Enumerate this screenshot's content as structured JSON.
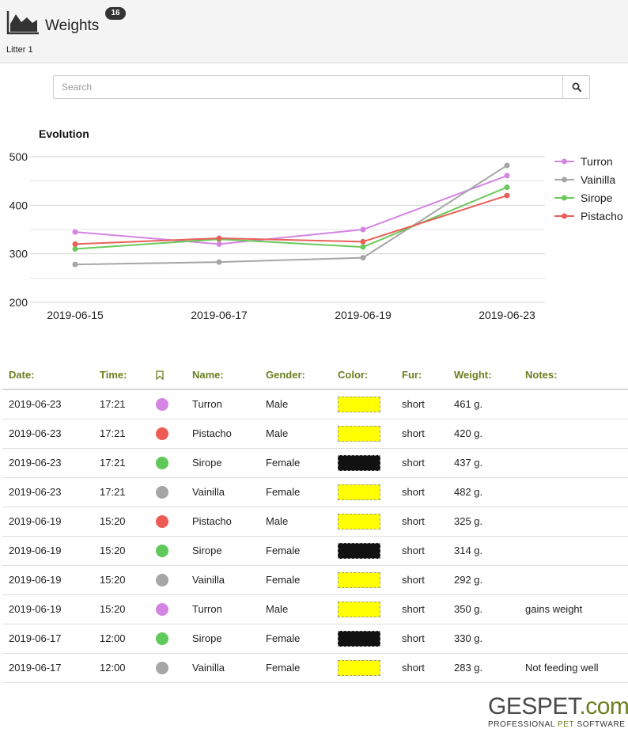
{
  "header": {
    "title": "Weights",
    "badge": "16",
    "subtitle": "Litter 1"
  },
  "search": {
    "placeholder": "Search",
    "value": ""
  },
  "chart_data": {
    "type": "line",
    "title": "Evolution",
    "xlabel": "",
    "ylabel": "",
    "x": [
      "2019-06-15",
      "2019-06-17",
      "2019-06-19",
      "2019-06-23"
    ],
    "ylim": [
      200,
      500
    ],
    "yticks": [
      200,
      300,
      400,
      500
    ],
    "grid": true,
    "legend_position": "right",
    "series": [
      {
        "name": "Turron",
        "color": "#d484e3",
        "values": [
          345,
          320,
          350,
          461
        ]
      },
      {
        "name": "Vainilla",
        "color": "#a6a6a6",
        "values": [
          278,
          283,
          292,
          482
        ]
      },
      {
        "name": "Sirope",
        "color": "#69c95a",
        "values": [
          310,
          330,
          314,
          437
        ]
      },
      {
        "name": "Pistacho",
        "color": "#e8605a",
        "values": [
          320,
          332,
          325,
          420
        ]
      }
    ]
  },
  "table": {
    "headers": {
      "date": "Date:",
      "time": "Time:",
      "name": "Name:",
      "gender": "Gender:",
      "color": "Color:",
      "fur": "Fur:",
      "weight": "Weight:",
      "notes": "Notes:"
    },
    "rows": [
      {
        "date": "2019-06-23",
        "time": "17:21",
        "dot": "#d484e3",
        "name": "Turron",
        "gender": "Male",
        "swatch": "#ffff00",
        "fur": "short",
        "weight": "461 g.",
        "notes": ""
      },
      {
        "date": "2019-06-23",
        "time": "17:21",
        "dot": "#ee5b55",
        "name": "Pistacho",
        "gender": "Male",
        "swatch": "#ffff00",
        "fur": "short",
        "weight": "420 g.",
        "notes": ""
      },
      {
        "date": "2019-06-23",
        "time": "17:21",
        "dot": "#5fc95a",
        "name": "Sirope",
        "gender": "Female",
        "swatch": "#111111",
        "fur": "short",
        "weight": "437 g.",
        "notes": ""
      },
      {
        "date": "2019-06-23",
        "time": "17:21",
        "dot": "#a6a6a6",
        "name": "Vainilla",
        "gender": "Female",
        "swatch": "#ffff00",
        "fur": "short",
        "weight": "482 g.",
        "notes": ""
      },
      {
        "date": "2019-06-19",
        "time": "15:20",
        "dot": "#ee5b55",
        "name": "Pistacho",
        "gender": "Male",
        "swatch": "#ffff00",
        "fur": "short",
        "weight": "325 g.",
        "notes": ""
      },
      {
        "date": "2019-06-19",
        "time": "15:20",
        "dot": "#5fc95a",
        "name": "Sirope",
        "gender": "Female",
        "swatch": "#111111",
        "fur": "short",
        "weight": "314 g.",
        "notes": ""
      },
      {
        "date": "2019-06-19",
        "time": "15:20",
        "dot": "#a6a6a6",
        "name": "Vainilla",
        "gender": "Female",
        "swatch": "#ffff00",
        "fur": "short",
        "weight": "292 g.",
        "notes": ""
      },
      {
        "date": "2019-06-19",
        "time": "15:20",
        "dot": "#d484e3",
        "name": "Turron",
        "gender": "Male",
        "swatch": "#ffff00",
        "fur": "short",
        "weight": "350 g.",
        "notes": "gains weight"
      },
      {
        "date": "2019-06-17",
        "time": "12:00",
        "dot": "#5fc95a",
        "name": "Sirope",
        "gender": "Female",
        "swatch": "#111111",
        "fur": "short",
        "weight": "330 g.",
        "notes": ""
      },
      {
        "date": "2019-06-17",
        "time": "12:00",
        "dot": "#a6a6a6",
        "name": "Vainilla",
        "gender": "Female",
        "swatch": "#ffff00",
        "fur": "short",
        "weight": "283 g.",
        "notes": "Not feeding well"
      }
    ]
  },
  "brand": {
    "name": "GESPET",
    "suffix": ".com",
    "tagline_a": "PROFESSIONAL ",
    "tagline_b": "PET",
    "tagline_c": " SOFTWARE"
  },
  "icons": {
    "logo": "area-chart-icon",
    "search": "search-icon",
    "bookmark": "bookmark-icon"
  },
  "colors": {
    "accent": "#6b7f1f",
    "header_bg": "#f4f4f4"
  }
}
